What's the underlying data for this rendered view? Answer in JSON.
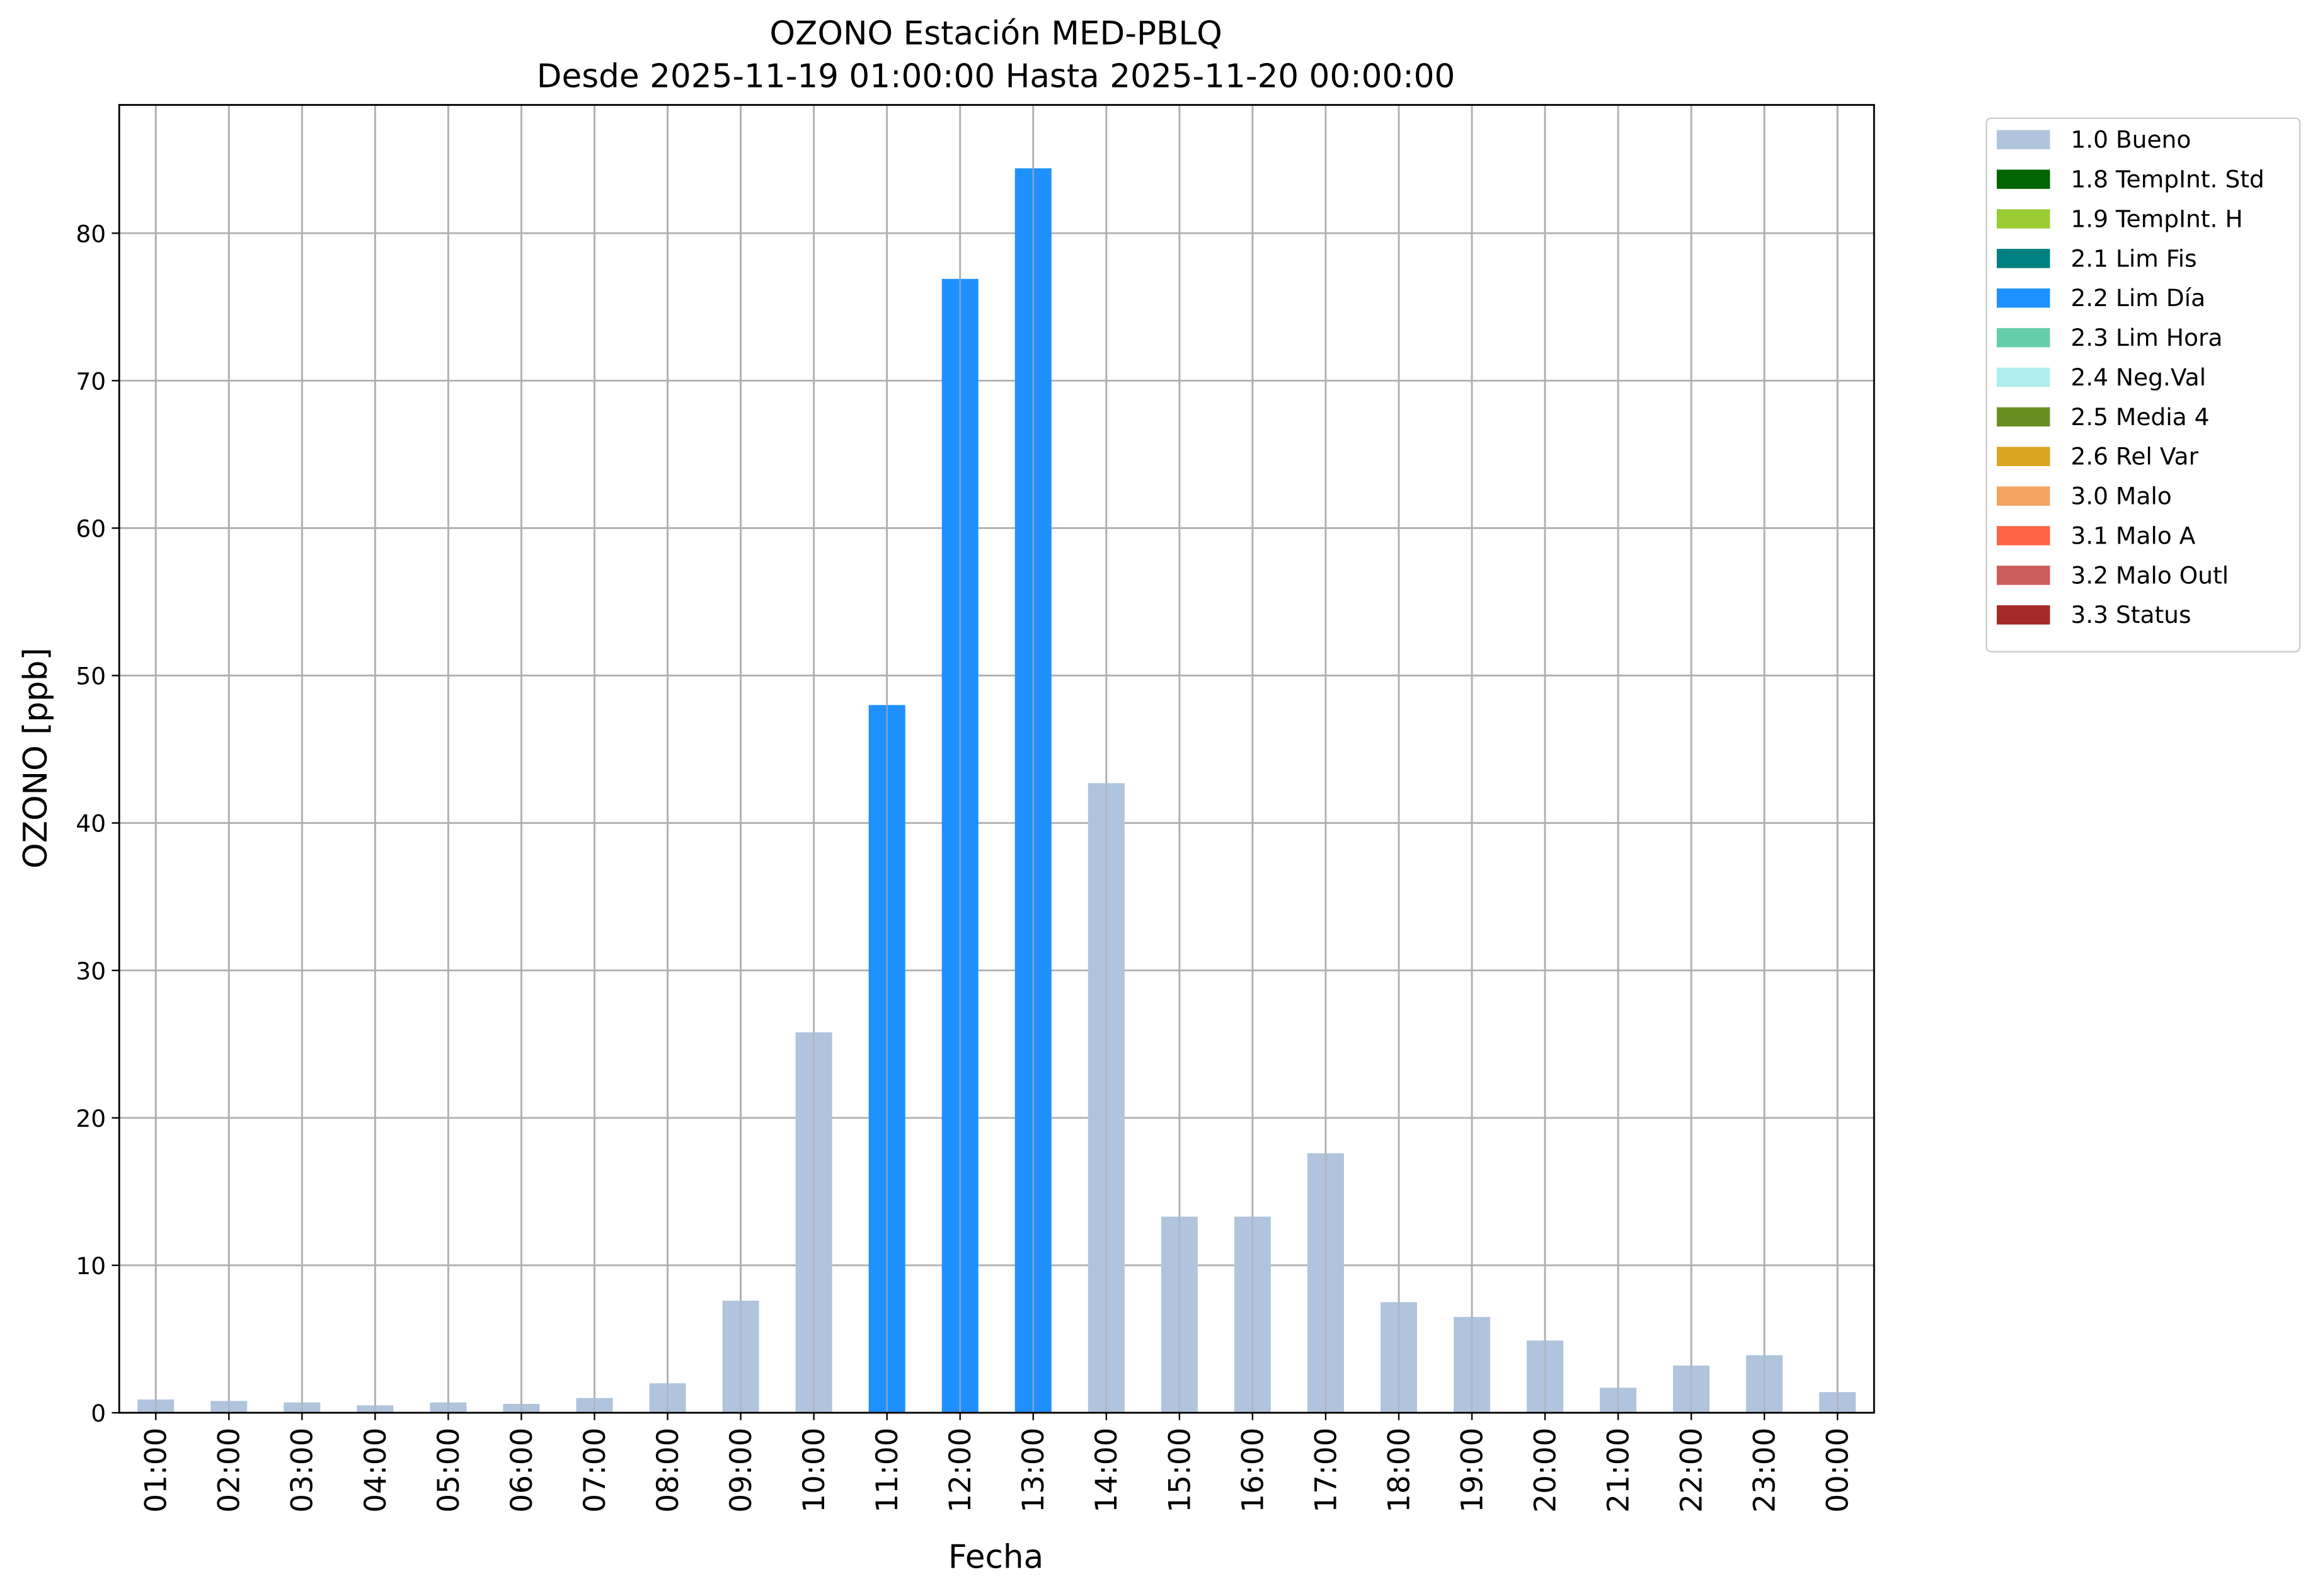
{
  "chart_data": {
    "type": "bar",
    "stacked": true,
    "title": "OZONO Estación MED-PBLQ",
    "subtitle": "Desde 2025-11-19 01:00:00 Hasta 2025-11-20 00:00:00",
    "xlabel": "Fecha",
    "ylabel": "OZONO [ppb]",
    "categories": [
      "01:00",
      "02:00",
      "03:00",
      "04:00",
      "05:00",
      "06:00",
      "07:00",
      "08:00",
      "09:00",
      "10:00",
      "11:00",
      "12:00",
      "13:00",
      "14:00",
      "15:00",
      "16:00",
      "17:00",
      "18:00",
      "19:00",
      "20:00",
      "21:00",
      "22:00",
      "23:00",
      "00:00"
    ],
    "series": [
      {
        "name": "1.0 Bueno",
        "color": "#b0c4de",
        "values": [
          0.9,
          0.8,
          0.7,
          0.5,
          0.7,
          0.6,
          1.0,
          2.0,
          7.6,
          25.8,
          null,
          null,
          null,
          42.7,
          13.3,
          13.3,
          17.6,
          7.5,
          6.5,
          4.9,
          1.7,
          3.2,
          3.9,
          1.4
        ]
      },
      {
        "name": "1.8 TempInt. Std",
        "color": "#006400",
        "values": [
          null,
          null,
          null,
          null,
          null,
          null,
          null,
          null,
          null,
          null,
          null,
          null,
          null,
          null,
          null,
          null,
          null,
          null,
          null,
          null,
          null,
          null,
          null,
          null
        ]
      },
      {
        "name": "1.9 TempInt. H",
        "color": "#9acd32",
        "values": [
          null,
          null,
          null,
          null,
          null,
          null,
          null,
          null,
          null,
          null,
          null,
          null,
          null,
          null,
          null,
          null,
          null,
          null,
          null,
          null,
          null,
          null,
          null,
          null
        ]
      },
      {
        "name": "2.1 Lim Fis",
        "color": "#008080",
        "values": [
          null,
          null,
          null,
          null,
          null,
          null,
          null,
          null,
          null,
          null,
          null,
          null,
          null,
          null,
          null,
          null,
          null,
          null,
          null,
          null,
          null,
          null,
          null,
          null
        ]
      },
      {
        "name": "2.2 Lim Día",
        "color": "#1e90ff",
        "values": [
          null,
          null,
          null,
          null,
          null,
          null,
          null,
          null,
          null,
          null,
          48.0,
          76.9,
          84.4,
          null,
          null,
          null,
          null,
          null,
          null,
          null,
          null,
          null,
          null,
          null
        ]
      },
      {
        "name": "2.3 Lim Hora",
        "color": "#66cdaa",
        "values": [
          null,
          null,
          null,
          null,
          null,
          null,
          null,
          null,
          null,
          null,
          null,
          null,
          null,
          null,
          null,
          null,
          null,
          null,
          null,
          null,
          null,
          null,
          null,
          null
        ]
      },
      {
        "name": "2.4 Neg.Val",
        "color": "#afeeee",
        "values": [
          null,
          null,
          null,
          null,
          null,
          null,
          null,
          null,
          null,
          null,
          null,
          null,
          null,
          null,
          null,
          null,
          null,
          null,
          null,
          null,
          null,
          null,
          null,
          null
        ]
      },
      {
        "name": "2.5 Media 4",
        "color": "#6b8e23",
        "values": [
          null,
          null,
          null,
          null,
          null,
          null,
          null,
          null,
          null,
          null,
          null,
          null,
          null,
          null,
          null,
          null,
          null,
          null,
          null,
          null,
          null,
          null,
          null,
          null
        ]
      },
      {
        "name": "2.6 Rel Var",
        "color": "#daa520",
        "values": [
          null,
          null,
          null,
          null,
          null,
          null,
          null,
          null,
          null,
          null,
          null,
          null,
          null,
          null,
          null,
          null,
          null,
          null,
          null,
          null,
          null,
          null,
          null,
          null
        ]
      },
      {
        "name": "3.0 Malo",
        "color": "#f4a460",
        "values": [
          null,
          null,
          null,
          null,
          null,
          null,
          null,
          null,
          null,
          null,
          null,
          null,
          null,
          null,
          null,
          null,
          null,
          null,
          null,
          null,
          null,
          null,
          null,
          null
        ]
      },
      {
        "name": "3.1 Malo A",
        "color": "#ff6347",
        "values": [
          null,
          null,
          null,
          null,
          null,
          null,
          null,
          null,
          null,
          null,
          null,
          null,
          null,
          null,
          null,
          null,
          null,
          null,
          null,
          null,
          null,
          null,
          null,
          null
        ]
      },
      {
        "name": "3.2 Malo Outl",
        "color": "#cd5c5c",
        "values": [
          null,
          null,
          null,
          null,
          null,
          null,
          null,
          null,
          null,
          null,
          null,
          null,
          null,
          null,
          null,
          null,
          null,
          null,
          null,
          null,
          null,
          null,
          null,
          null
        ]
      },
      {
        "name": "3.3 Status",
        "color": "#a52a2a",
        "values": [
          null,
          null,
          null,
          null,
          null,
          null,
          null,
          null,
          null,
          null,
          null,
          null,
          null,
          null,
          null,
          null,
          null,
          null,
          null,
          null,
          null,
          null,
          null,
          null
        ]
      }
    ],
    "ylim": [
      0,
      88.7
    ],
    "yticks": [
      0,
      10,
      20,
      30,
      40,
      50,
      60,
      70,
      80
    ],
    "grid": true,
    "legend": "outside-right"
  }
}
